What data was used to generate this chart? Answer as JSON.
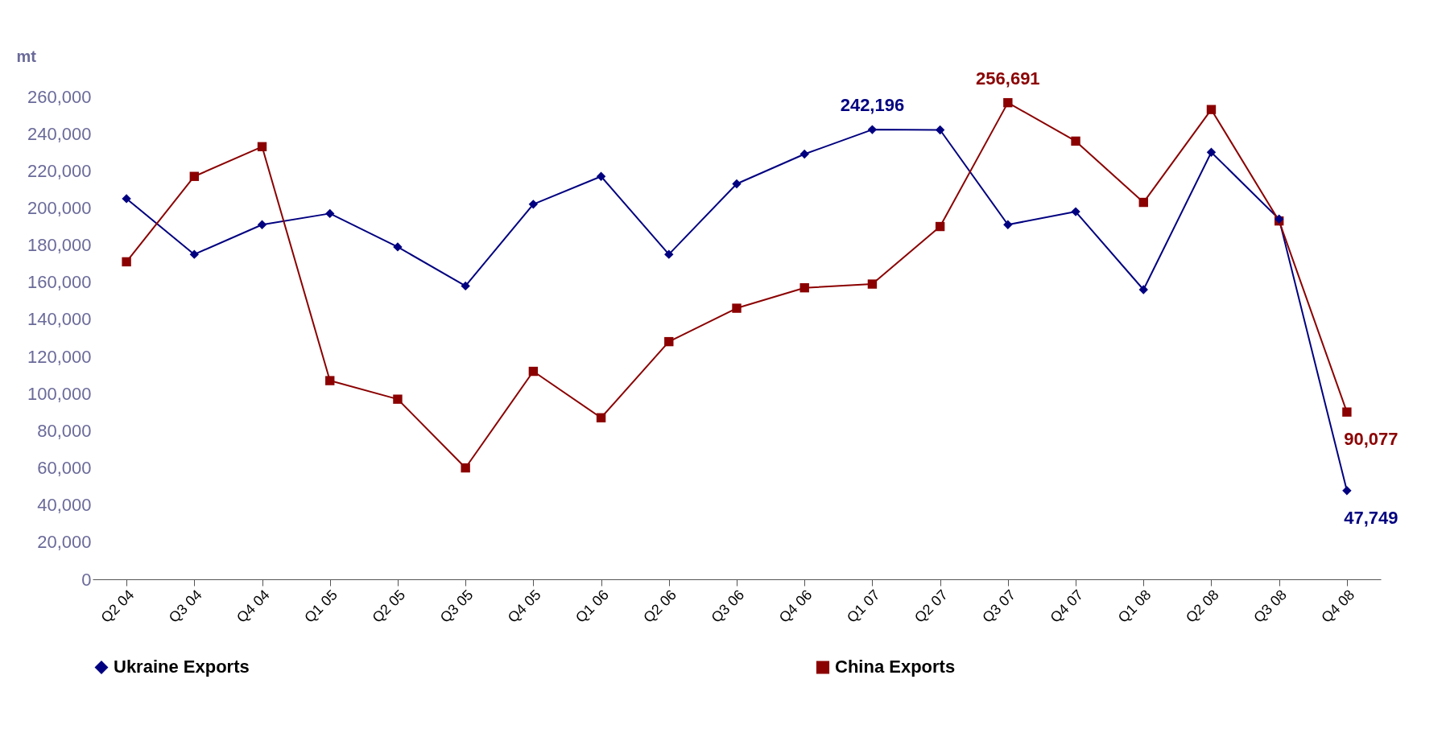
{
  "chart_data": {
    "type": "line",
    "ylabel": "mt",
    "categories": [
      "Q2 04",
      "Q3 04",
      "Q4 04",
      "Q1 05",
      "Q2 05",
      "Q3 05",
      "Q4 05",
      "Q1 06",
      "Q2 06",
      "Q3 06",
      "Q4 06",
      "Q1 07",
      "Q2 07",
      "Q3 07",
      "Q4 07",
      "Q1 08",
      "Q2 08",
      "Q3 08",
      "Q4 08"
    ],
    "series": [
      {
        "name": "Ukraine Exports",
        "color": "#000080",
        "marker": "diamond",
        "values": [
          205000,
          175000,
          191000,
          197000,
          179000,
          158000,
          202000,
          217000,
          175000,
          213000,
          229000,
          242196,
          242000,
          191000,
          198000,
          156000,
          230000,
          194000,
          47749
        ],
        "value_labels": [
          null,
          null,
          null,
          null,
          null,
          null,
          null,
          null,
          null,
          null,
          null,
          "242,196",
          null,
          null,
          null,
          null,
          null,
          null,
          "47,749"
        ]
      },
      {
        "name": "China Exports",
        "color": "#8b0000",
        "marker": "square",
        "values": [
          171000,
          217000,
          233000,
          107000,
          97000,
          60000,
          112000,
          87000,
          128000,
          146000,
          157000,
          159000,
          190000,
          256691,
          236000,
          203000,
          253000,
          193000,
          90077
        ],
        "value_labels": [
          null,
          null,
          null,
          null,
          null,
          null,
          null,
          null,
          null,
          null,
          null,
          null,
          null,
          "256,691",
          null,
          null,
          null,
          null,
          "90,077"
        ]
      }
    ],
    "ylim": [
      0,
      260000
    ],
    "yticks": [
      0,
      {
        "value": 20000,
        "label": "20,000"
      },
      {
        "value": 40000,
        "label": "40,000"
      },
      {
        "value": 60000,
        "label": "60,000"
      },
      {
        "value": 80000,
        "label": "80,000"
      },
      {
        "value": 100000,
        "label": "100,000"
      },
      {
        "value": 120000,
        "label": "120,000"
      },
      {
        "value": 140000,
        "label": "140,000"
      },
      {
        "value": 160000,
        "label": "160,000"
      },
      {
        "value": 180000,
        "label": "180,000"
      },
      {
        "value": 200000,
        "label": "200,000"
      },
      {
        "value": 220000,
        "label": "220,000"
      },
      {
        "value": 240000,
        "label": "240,000"
      },
      {
        "value": 260000,
        "label": "260,000"
      }
    ],
    "grid": false,
    "legend": "bottom"
  }
}
